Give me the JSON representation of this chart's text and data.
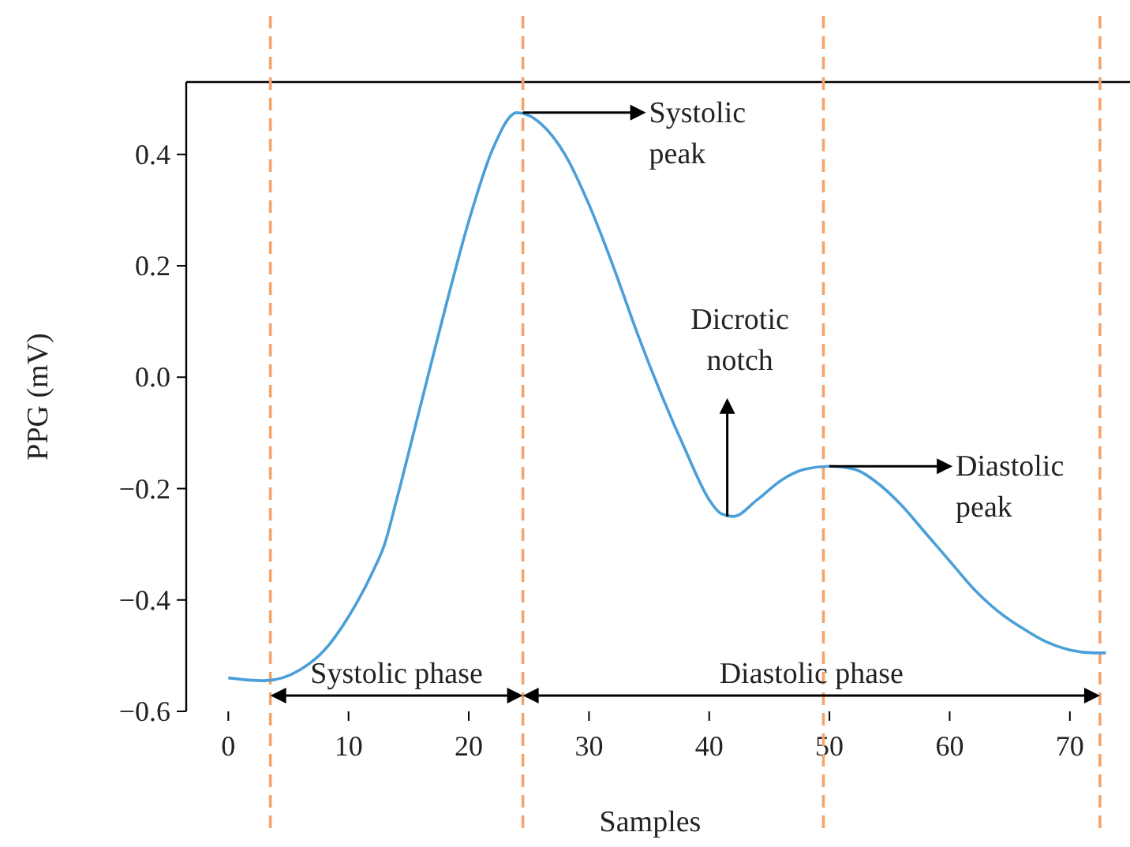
{
  "chart_data": {
    "type": "line",
    "xlabel": "Samples",
    "ylabel": "PPG (mV)",
    "xlim": [
      -3.5,
      75
    ],
    "ylim": [
      -0.6,
      0.53
    ],
    "xticks": [
      0,
      10,
      20,
      30,
      40,
      50,
      60,
      70
    ],
    "yticks": [
      {
        "value": -0.6,
        "label": "−0.6"
      },
      {
        "value": -0.4,
        "label": "−0.4"
      },
      {
        "value": -0.2,
        "label": "−0.2"
      },
      {
        "value": 0,
        "label": "0.0"
      },
      {
        "value": 0.2,
        "label": "0.2"
      },
      {
        "value": 0.4,
        "label": "0.4"
      }
    ],
    "grid": false,
    "line_style": "solid",
    "marker": "none",
    "series": [
      {
        "color": "#4a9fd8",
        "x": [
          0,
          3,
          6,
          8,
          10,
          12,
          13,
          14,
          16,
          18,
          20,
          22,
          24,
          25,
          26,
          28,
          30,
          32,
          34,
          36,
          38,
          40,
          41,
          42,
          44,
          46,
          48,
          50,
          52,
          54,
          56,
          58,
          60,
          62,
          64,
          66,
          68,
          70,
          72,
          73
        ],
        "values": [
          -0.54,
          -0.545,
          -0.525,
          -0.49,
          -0.43,
          -0.35,
          -0.3,
          -0.22,
          -0.05,
          0.12,
          0.28,
          0.41,
          0.475,
          0.47,
          0.455,
          0.4,
          0.31,
          0.2,
          0.08,
          -0.03,
          -0.13,
          -0.22,
          -0.245,
          -0.25,
          -0.22,
          -0.185,
          -0.165,
          -0.16,
          -0.165,
          -0.19,
          -0.23,
          -0.28,
          -0.33,
          -0.38,
          -0.42,
          -0.45,
          -0.475,
          -0.49,
          -0.495,
          -0.495
        ]
      }
    ],
    "ref_lines": [
      {
        "axis": "x",
        "value": 3.5,
        "color": "#f5a46a",
        "line_style": "dashed"
      },
      {
        "axis": "x",
        "value": 24.5,
        "color": "#f5a46a",
        "line_style": "dashed"
      },
      {
        "axis": "x",
        "value": 49.5,
        "color": "#f5a46a",
        "line_style": "dashed"
      },
      {
        "axis": "x",
        "value": 72.5,
        "color": "#f5a46a",
        "line_style": "dashed"
      }
    ],
    "annotations": [
      {
        "text": "Systolic peak",
        "x": 24.5,
        "y": 0.475
      },
      {
        "text": "Dicrotic notch",
        "x": 41.5,
        "y": -0.25
      },
      {
        "text": "Diastolic peak",
        "x": 50,
        "y": -0.16
      },
      "Systolic phase",
      "Diastolic phase"
    ]
  }
}
